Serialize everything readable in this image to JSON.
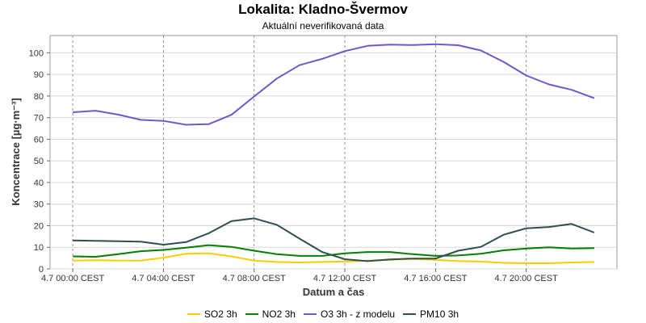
{
  "chart_data": {
    "type": "line",
    "title": "Lokalita: Kladno-Švermov",
    "subtitle": "Aktuální neverifikovaná data",
    "xlabel": "Datum a čas",
    "ylabel": "Koncentrace [µg·m⁻³]",
    "ylim": [
      0,
      108
    ],
    "yticks": [
      0,
      10,
      20,
      30,
      40,
      50,
      60,
      70,
      80,
      90,
      100
    ],
    "xlim": [
      -1,
      24
    ],
    "xticks": [
      {
        "x": 0,
        "label": "4.7 00:00 CEST"
      },
      {
        "x": 4,
        "label": "4.7 04:00 CEST"
      },
      {
        "x": 8,
        "label": "4.7 08:00 CEST"
      },
      {
        "x": 12,
        "label": "4.7 12:00 CEST"
      },
      {
        "x": 16,
        "label": "4.7 16:00 CEST"
      },
      {
        "x": 20,
        "label": "4.7 20:00 CEST"
      }
    ],
    "grid": true,
    "legend_position": "bottom",
    "x": [
      0,
      1,
      2,
      3,
      4,
      5,
      6,
      7,
      8,
      9,
      10,
      11,
      12,
      13,
      14,
      15,
      16,
      17,
      18,
      19,
      20,
      21,
      22,
      23
    ],
    "series": [
      {
        "name": "SO2 3h",
        "color": "#ffcc00",
        "values": [
          3.8,
          4.0,
          3.9,
          3.8,
          5.2,
          7.0,
          7.2,
          5.8,
          3.8,
          3.2,
          3.0,
          3.2,
          3.4,
          3.8,
          4.2,
          4.6,
          4.2,
          3.6,
          3.4,
          2.8,
          2.6,
          2.6,
          3.0,
          3.2
        ]
      },
      {
        "name": "NO2 3h",
        "color": "#008000",
        "values": [
          5.8,
          5.6,
          6.8,
          8.2,
          8.8,
          9.8,
          11.0,
          10.2,
          8.4,
          6.8,
          6.0,
          6.0,
          7.2,
          7.8,
          7.8,
          6.8,
          6.0,
          6.2,
          7.0,
          8.6,
          9.4,
          10.0,
          9.4,
          9.6
        ]
      },
      {
        "name": "O3 3h - z modelu",
        "color": "#6a5acd",
        "values": [
          72.5,
          73.2,
          71.4,
          69.0,
          68.5,
          66.7,
          67.0,
          71.3,
          79.8,
          88.1,
          94.3,
          97.2,
          100.8,
          103.2,
          103.8,
          103.6,
          104.0,
          103.5,
          101.1,
          95.8,
          89.5,
          85.4,
          82.9,
          79.0
        ]
      },
      {
        "name": "PM10 3h",
        "color": "#2f4f4f",
        "values": [
          13.2,
          13.0,
          12.8,
          12.6,
          11.2,
          12.4,
          16.5,
          22.1,
          23.4,
          20.4,
          14.0,
          7.8,
          4.5,
          3.6,
          4.4,
          4.8,
          4.8,
          8.4,
          10.2,
          15.8,
          18.8,
          19.4,
          20.8,
          16.8
        ]
      }
    ]
  }
}
